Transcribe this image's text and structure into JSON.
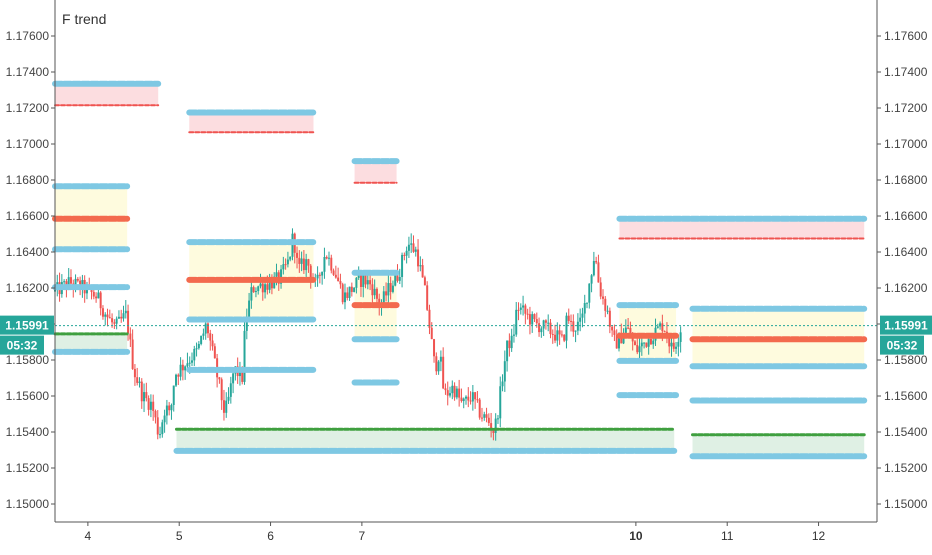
{
  "chart_data": {
    "type": "candlestick",
    "title": "F trend",
    "price_axis": {
      "min": 1.149,
      "max": 1.178,
      "ticks": [
        "1.15000",
        "1.15200",
        "1.15400",
        "1.15600",
        "1.15800",
        "1.16000",
        "1.16200",
        "1.16400",
        "1.16600",
        "1.16800",
        "1.17000",
        "1.17200",
        "1.17400",
        "1.17600"
      ]
    },
    "time_axis": {
      "min": 3.64,
      "max": 12.64,
      "ticks": [
        {
          "x": 4,
          "label": "4",
          "bold": false
        },
        {
          "x": 5,
          "label": "5",
          "bold": false
        },
        {
          "x": 6,
          "label": "6",
          "bold": false
        },
        {
          "x": 7,
          "label": "7",
          "bold": false
        },
        {
          "x": 10,
          "label": "10",
          "bold": true
        },
        {
          "x": 11,
          "label": "11",
          "bold": false
        },
        {
          "x": 12,
          "label": "12",
          "bold": false
        }
      ]
    },
    "current_price": {
      "value": "1.15991",
      "y": 1.15991,
      "countdown": "05:32",
      "color": "#26a69a"
    },
    "colors": {
      "up": "#26a69a",
      "down": "#ef5350",
      "blue_level": "#7ec8e3",
      "red_level": "#f36a4e",
      "green_level": "#3f9f3f",
      "pink_zone": "#fcdde0",
      "yellow_zone": "#fefbde",
      "green_zone": "#dff0e4"
    },
    "price_path": [
      [
        3.64,
        1.1618
      ],
      [
        3.8,
        1.1623
      ],
      [
        3.95,
        1.162
      ],
      [
        4.1,
        1.1615
      ],
      [
        4.2,
        1.1605
      ],
      [
        4.3,
        1.1598
      ],
      [
        4.42,
        1.1605
      ],
      [
        4.5,
        1.1575
      ],
      [
        4.6,
        1.156
      ],
      [
        4.7,
        1.1555
      ],
      [
        4.78,
        1.1538
      ],
      [
        4.85,
        1.1555
      ],
      [
        4.9,
        1.1548
      ],
      [
        4.95,
        1.1572
      ],
      [
        5.1,
        1.158
      ],
      [
        5.2,
        1.1585
      ],
      [
        5.3,
        1.16
      ],
      [
        5.4,
        1.1575
      ],
      [
        5.5,
        1.155
      ],
      [
        5.55,
        1.156
      ],
      [
        5.6,
        1.1575
      ],
      [
        5.7,
        1.157
      ],
      [
        5.72,
        1.16
      ],
      [
        5.8,
        1.162
      ],
      [
        6.0,
        1.1623
      ],
      [
        6.1,
        1.1625
      ],
      [
        6.2,
        1.1635
      ],
      [
        6.25,
        1.165
      ],
      [
        6.3,
        1.163
      ],
      [
        6.4,
        1.1635
      ],
      [
        6.5,
        1.162
      ],
      [
        6.6,
        1.164
      ],
      [
        6.7,
        1.163
      ],
      [
        6.8,
        1.1615
      ],
      [
        6.9,
        1.162
      ],
      [
        7.0,
        1.1625
      ],
      [
        7.1,
        1.1622
      ],
      [
        7.2,
        1.161
      ],
      [
        7.3,
        1.162
      ],
      [
        7.4,
        1.1628
      ],
      [
        7.5,
        1.1645
      ],
      [
        7.6,
        1.164
      ],
      [
        7.7,
        1.1615
      ],
      [
        7.75,
        1.1595
      ],
      [
        7.8,
        1.1575
      ],
      [
        7.85,
        1.1585
      ],
      [
        7.9,
        1.156
      ],
      [
        8.0,
        1.1565
      ],
      [
        8.1,
        1.1555
      ],
      [
        8.2,
        1.156
      ],
      [
        8.3,
        1.155
      ],
      [
        8.4,
        1.1545
      ],
      [
        8.45,
        1.154
      ],
      [
        8.5,
        1.1555
      ],
      [
        8.55,
        1.1575
      ],
      [
        8.6,
        1.159
      ],
      [
        8.65,
        1.159
      ],
      [
        8.7,
        1.161
      ],
      [
        8.8,
        1.1605
      ],
      [
        8.9,
        1.16
      ],
      [
        9.0,
        1.1598
      ],
      [
        9.1,
        1.1595
      ],
      [
        9.2,
        1.159
      ],
      [
        9.25,
        1.1605
      ],
      [
        9.3,
        1.1598
      ],
      [
        9.4,
        1.16
      ],
      [
        9.5,
        1.1625
      ],
      [
        9.55,
        1.164
      ],
      [
        9.6,
        1.162
      ],
      [
        9.7,
        1.1605
      ],
      [
        9.75,
        1.159
      ],
      [
        9.8,
        1.159
      ],
      [
        9.9,
        1.1598
      ],
      [
        10.0,
        1.1585
      ],
      [
        10.1,
        1.159
      ],
      [
        10.2,
        1.1595
      ],
      [
        10.3,
        1.16
      ],
      [
        10.4,
        1.1585
      ],
      [
        10.5,
        1.1599
      ]
    ],
    "levels": [
      {
        "x0": 3.64,
        "x1": 4.77,
        "color": "blue",
        "price": 1.17335
      },
      {
        "x0": 3.64,
        "x1": 4.77,
        "color": "red_dash",
        "price": 1.17215
      },
      {
        "x0": 3.64,
        "x1": 4.43,
        "color": "blue",
        "price": 1.16765
      },
      {
        "x0": 3.64,
        "x1": 4.43,
        "color": "red",
        "price": 1.16585
      },
      {
        "x0": 3.64,
        "x1": 4.43,
        "color": "blue",
        "price": 1.16415
      },
      {
        "x0": 3.64,
        "x1": 4.43,
        "color": "blue",
        "price": 1.16205
      },
      {
        "x0": 3.64,
        "x1": 4.43,
        "color": "green_dash",
        "price": 1.15945
      },
      {
        "x0": 3.64,
        "x1": 4.43,
        "color": "blue",
        "price": 1.15845
      },
      {
        "x0": 5.11,
        "x1": 6.47,
        "color": "blue",
        "price": 1.17175
      },
      {
        "x0": 5.11,
        "x1": 6.47,
        "color": "red_dash",
        "price": 1.17065
      },
      {
        "x0": 5.11,
        "x1": 6.47,
        "color": "blue",
        "price": 1.16455
      },
      {
        "x0": 5.11,
        "x1": 6.47,
        "color": "red",
        "price": 1.16245
      },
      {
        "x0": 5.11,
        "x1": 6.47,
        "color": "blue",
        "price": 1.16025
      },
      {
        "x0": 5.11,
        "x1": 6.47,
        "color": "blue",
        "price": 1.15745
      },
      {
        "x0": 6.92,
        "x1": 7.38,
        "color": "blue",
        "price": 1.16905
      },
      {
        "x0": 6.92,
        "x1": 7.38,
        "color": "red_dash",
        "price": 1.16785
      },
      {
        "x0": 6.92,
        "x1": 7.38,
        "color": "blue",
        "price": 1.16285
      },
      {
        "x0": 6.92,
        "x1": 7.38,
        "color": "red",
        "price": 1.16105
      },
      {
        "x0": 6.92,
        "x1": 7.38,
        "color": "blue",
        "price": 1.15915
      },
      {
        "x0": 6.92,
        "x1": 7.38,
        "color": "blue",
        "price": 1.15675
      },
      {
        "x0": 4.97,
        "x1": 10.42,
        "color": "green_dash",
        "price": 1.15415
      },
      {
        "x0": 4.97,
        "x1": 10.42,
        "color": "blue",
        "price": 1.15295
      },
      {
        "x0": 9.82,
        "x1": 12.5,
        "color": "blue",
        "price": 1.16585
      },
      {
        "x0": 9.82,
        "x1": 12.5,
        "color": "red_dash",
        "price": 1.16475
      },
      {
        "x0": 9.82,
        "x1": 10.44,
        "color": "blue",
        "price": 1.16105
      },
      {
        "x0": 9.82,
        "x1": 10.44,
        "color": "red",
        "price": 1.15935
      },
      {
        "x0": 9.82,
        "x1": 10.44,
        "color": "blue",
        "price": 1.15795
      },
      {
        "x0": 9.82,
        "x1": 10.44,
        "color": "blue",
        "price": 1.15605
      },
      {
        "x0": 10.62,
        "x1": 12.5,
        "color": "blue",
        "price": 1.16085
      },
      {
        "x0": 10.62,
        "x1": 12.5,
        "color": "red",
        "price": 1.15915
      },
      {
        "x0": 10.62,
        "x1": 12.5,
        "color": "blue",
        "price": 1.15765
      },
      {
        "x0": 10.62,
        "x1": 12.5,
        "color": "blue",
        "price": 1.15575
      },
      {
        "x0": 10.62,
        "x1": 12.5,
        "color": "green_dash",
        "price": 1.15385
      },
      {
        "x0": 10.62,
        "x1": 12.5,
        "color": "blue",
        "price": 1.15265
      }
    ],
    "zones": [
      {
        "x0": 3.64,
        "x1": 4.77,
        "p0": 1.17335,
        "p1": 1.17215,
        "fill": "pink"
      },
      {
        "x0": 3.64,
        "x1": 4.43,
        "p0": 1.16765,
        "p1": 1.16415,
        "fill": "yellow"
      },
      {
        "x0": 3.64,
        "x1": 4.43,
        "p0": 1.15945,
        "p1": 1.15845,
        "fill": "green"
      },
      {
        "x0": 5.11,
        "x1": 6.47,
        "p0": 1.17175,
        "p1": 1.17065,
        "fill": "pink"
      },
      {
        "x0": 5.11,
        "x1": 6.47,
        "p0": 1.16455,
        "p1": 1.16025,
        "fill": "yellow"
      },
      {
        "x0": 6.92,
        "x1": 7.38,
        "p0": 1.16905,
        "p1": 1.16785,
        "fill": "pink"
      },
      {
        "x0": 6.92,
        "x1": 7.38,
        "p0": 1.16285,
        "p1": 1.15915,
        "fill": "yellow"
      },
      {
        "x0": 4.97,
        "x1": 10.42,
        "p0": 1.15415,
        "p1": 1.15295,
        "fill": "green"
      },
      {
        "x0": 9.82,
        "x1": 12.5,
        "p0": 1.16585,
        "p1": 1.16475,
        "fill": "pink"
      },
      {
        "x0": 9.82,
        "x1": 10.44,
        "p0": 1.16105,
        "p1": 1.15795,
        "fill": "yellow"
      },
      {
        "x0": 10.62,
        "x1": 12.5,
        "p0": 1.16085,
        "p1": 1.15765,
        "fill": "yellow"
      },
      {
        "x0": 10.62,
        "x1": 12.5,
        "p0": 1.15385,
        "p1": 1.15265,
        "fill": "green"
      }
    ],
    "grid": false
  }
}
